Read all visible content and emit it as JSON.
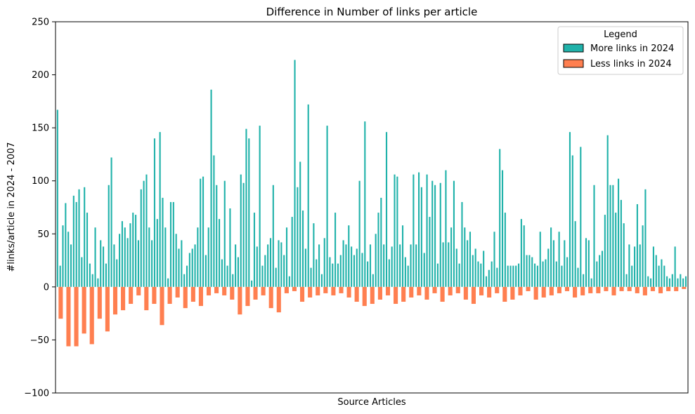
{
  "chart_data": {
    "type": "bar",
    "title": "Difference in Number of links per article",
    "xlabel": "Source Articles",
    "ylabel": "#links/article in 2024 - 2007",
    "ylim": [
      -100,
      250
    ],
    "yticks": [
      -100,
      -50,
      0,
      50,
      100,
      150,
      200,
      250
    ],
    "ytick_labels": [
      "−100",
      "−50",
      "0",
      "50",
      "100",
      "150",
      "200",
      "250"
    ],
    "grid": false,
    "legend": {
      "title": "Legend",
      "placement": "top-right",
      "entries": [
        {
          "label": "More links in 2024",
          "color": "#20b2aa"
        },
        {
          "label": "Less links in 2024",
          "color": "#ff7f50"
        }
      ]
    },
    "colors": {
      "positive": "#20b2aa",
      "negative": "#ff7f50"
    },
    "series": [
      {
        "name": "More links in 2024",
        "values": [
          167,
          20,
          58,
          79,
          52,
          40,
          86,
          80,
          92,
          28,
          94,
          70,
          22,
          12,
          56,
          8,
          44,
          38,
          22,
          96,
          122,
          40,
          26,
          50,
          62,
          56,
          46,
          60,
          70,
          68,
          44,
          92,
          100,
          106,
          56,
          44,
          140,
          64,
          146,
          84,
          56,
          8,
          80,
          80,
          50,
          36,
          44,
          12,
          20,
          32,
          36,
          40,
          56,
          102,
          104,
          30,
          56,
          186,
          124,
          96,
          64,
          26,
          100,
          20,
          74,
          12,
          40,
          28,
          106,
          98,
          149,
          140,
          6,
          70,
          38,
          152,
          20,
          30,
          40,
          46,
          96,
          18,
          44,
          42,
          30,
          56,
          10,
          66,
          214,
          94,
          118,
          72,
          36,
          172,
          18,
          60,
          26,
          40,
          12,
          46,
          152,
          28,
          22,
          70,
          22,
          30,
          44,
          40,
          58,
          38,
          30,
          36,
          100,
          32,
          156,
          24,
          40,
          12,
          50,
          70,
          84,
          40,
          146,
          26,
          38,
          106,
          104,
          40,
          58,
          28,
          20,
          40,
          106,
          40,
          108,
          94,
          32,
          106,
          66,
          100,
          96,
          22,
          98,
          42,
          110,
          42,
          56,
          100,
          36,
          22,
          80,
          56,
          44,
          52,
          30,
          36,
          24,
          22,
          34,
          10,
          16,
          24,
          52,
          18,
          130,
          110,
          70,
          20,
          20,
          20,
          20,
          22,
          64,
          58,
          30,
          30,
          28,
          22,
          20,
          52,
          24,
          26,
          36,
          56,
          44,
          24,
          52,
          20,
          44,
          28,
          146,
          124,
          62,
          18,
          132,
          12,
          46,
          44,
          8,
          96,
          24,
          30,
          34,
          68,
          143,
          96,
          96,
          70,
          102,
          82,
          60,
          12,
          40,
          20,
          38,
          78,
          40,
          58,
          92,
          10,
          8,
          38,
          30,
          20,
          26,
          20,
          10,
          8,
          12,
          38,
          8,
          12,
          8,
          10
        ]
      },
      {
        "name": "Less links in 2024",
        "values": [
          -30,
          -56,
          -56,
          -44,
          -54,
          -30,
          -42,
          -26,
          -22,
          -16,
          -8,
          -22,
          -16,
          -36,
          -16,
          -10,
          -20,
          -14,
          -18,
          -8,
          -6,
          -8,
          -12,
          -26,
          -18,
          -12,
          -8,
          -20,
          -24,
          -6,
          -4,
          -14,
          -10,
          -8,
          -6,
          -8,
          -6,
          -10,
          -14,
          -18,
          -16,
          -12,
          -8,
          -16,
          -14,
          -10,
          -8,
          -12,
          -6,
          -14,
          -8,
          -6,
          -12,
          -16,
          -8,
          -10,
          -6,
          -14,
          -12,
          -8,
          -4,
          -12,
          -10,
          -8,
          -6,
          -4,
          -10,
          -8,
          -6,
          -6,
          -4,
          -8,
          -4,
          -4,
          -6,
          -8,
          -4,
          -6,
          -4,
          -4,
          -2
        ]
      }
    ]
  }
}
